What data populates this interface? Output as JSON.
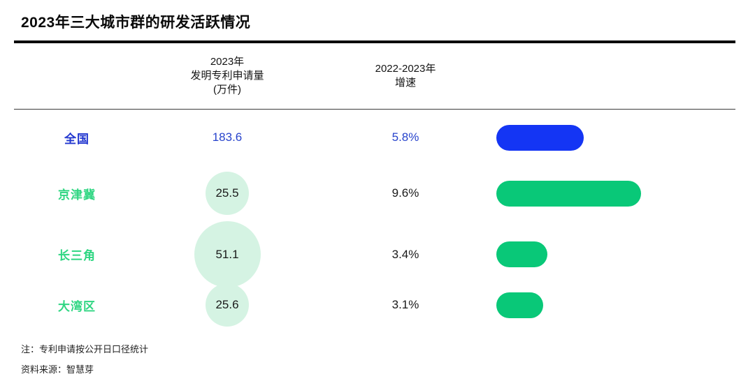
{
  "title": "2023年三大城市群的研发活跃情况",
  "columns": {
    "region_header": "",
    "patent_header": "2023年\n发明专利申请量\n(万件)",
    "growth_header": "2022-2023年\n增速"
  },
  "chart_data": {
    "type": "table",
    "title": "2023年三大城市群的研发活跃情况",
    "column_labels": [
      "2023年发明专利申请量(万件)",
      "2022-2023年增速"
    ],
    "bubble_column": "patent_applications_10k",
    "bar_column": "growth_rate_pct",
    "rows": [
      {
        "region": "全国",
        "patent_applications_10k": 183.6,
        "patent_label": "183.6",
        "growth_rate_pct": 5.8,
        "growth_label": "5.8%",
        "theme": "blue",
        "show_bubble": false
      },
      {
        "region": "京津冀",
        "patent_applications_10k": 25.5,
        "patent_label": "25.5",
        "growth_rate_pct": 9.6,
        "growth_label": "9.6%",
        "theme": "green",
        "show_bubble": true
      },
      {
        "region": "长三角",
        "patent_applications_10k": 51.1,
        "patent_label": "51.1",
        "growth_rate_pct": 3.4,
        "growth_label": "3.4%",
        "theme": "green",
        "show_bubble": true
      },
      {
        "region": "大湾区",
        "patent_applications_10k": 25.6,
        "patent_label": "25.6",
        "growth_rate_pct": 3.1,
        "growth_label": "3.1%",
        "theme": "green",
        "show_bubble": true
      }
    ]
  },
  "notes": {
    "note": "注：专利申请按公开日口径统计",
    "source": "资料来源：智慧芽"
  },
  "colors": {
    "blue_bar": "#1435f4",
    "blue_text": "#2743cc",
    "blue_label": "#2136cf",
    "green_bar": "#09c878",
    "green_label": "#2fd682",
    "bubble_fill": "#d5f3e3",
    "rule": "#0a0a0a"
  }
}
